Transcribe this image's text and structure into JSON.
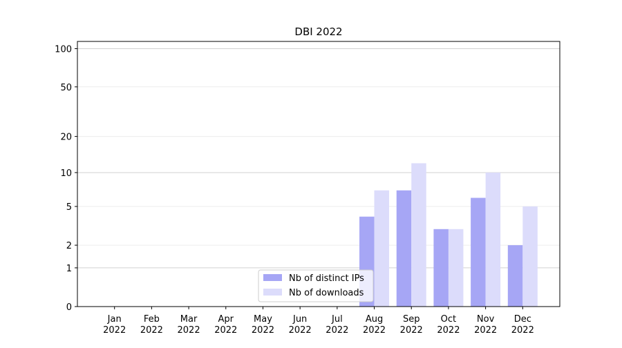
{
  "chart_data": {
    "type": "bar",
    "title": "DBI 2022",
    "categories": [
      "Jan 2022",
      "Feb 2022",
      "Mar 2022",
      "Apr 2022",
      "May 2022",
      "Jun 2022",
      "Jul 2022",
      "Aug 2022",
      "Sep 2022",
      "Oct 2022",
      "Nov 2022",
      "Dec 2022"
    ],
    "series": [
      {
        "name": "Nb of distinct IPs",
        "color": "#a6a6f5",
        "values": [
          0,
          0,
          0,
          0,
          0,
          0,
          0,
          4,
          7,
          3,
          6,
          2
        ]
      },
      {
        "name": "Nb of downloads",
        "color": "#dcdcfb",
        "values": [
          0,
          0,
          0,
          0,
          0,
          0,
          0,
          7,
          12,
          3,
          10,
          5
        ]
      }
    ],
    "yscale": "log1p",
    "ylim": [
      0,
      114
    ],
    "yticks": [
      0,
      1,
      2,
      5,
      10,
      20,
      50,
      100
    ],
    "grid": true,
    "legend": "lower center"
  }
}
